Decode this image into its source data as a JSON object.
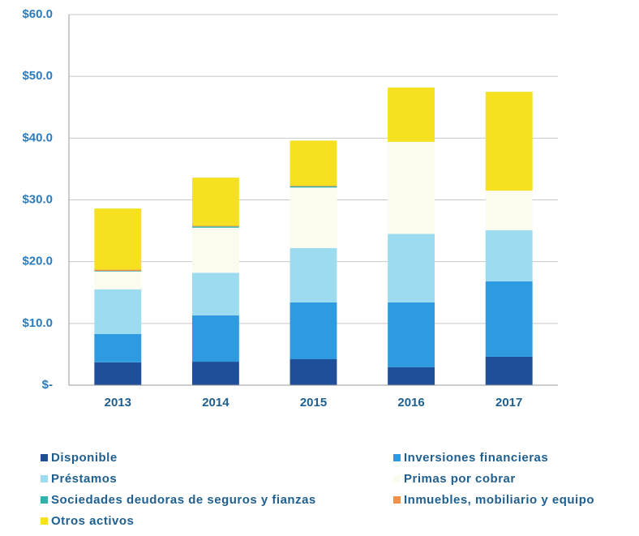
{
  "chart_data": {
    "type": "stacked_bar",
    "categories": [
      "2013",
      "2014",
      "2015",
      "2016",
      "2017"
    ],
    "series": [
      {
        "name": "Disponible",
        "color": "#1f4e9a",
        "values": [
          3.7,
          3.8,
          4.2,
          2.9,
          4.6
        ]
      },
      {
        "name": "Inversiones financieras",
        "color": "#2e9be0",
        "values": [
          4.6,
          7.5,
          9.2,
          10.5,
          12.2
        ]
      },
      {
        "name": "Préstamos",
        "color": "#9ddcf0",
        "values": [
          7.2,
          6.9,
          8.8,
          11.1,
          8.3
        ]
      },
      {
        "name": "Primas por cobrar",
        "color": "#fbfbee",
        "values": [
          2.9,
          7.3,
          9.8,
          14.9,
          6.4
        ]
      },
      {
        "name": "Sociedades deudoras de seguros y fianzas",
        "color": "#2ab5a8",
        "values": [
          0.1,
          0.2,
          0.2,
          0,
          0
        ]
      },
      {
        "name": "Inmuebles, mobiliario y equipo",
        "color": "#f0904a",
        "values": [
          0.2,
          0.1,
          0.1,
          0,
          0
        ]
      },
      {
        "name": "Otros activos",
        "color": "#f5e120",
        "values": [
          9.9,
          7.8,
          7.3,
          8.8,
          16.0
        ]
      }
    ],
    "ylim": [
      0,
      60
    ],
    "yticks": [
      {
        "value": 0,
        "label": "$-"
      },
      {
        "value": 10,
        "label": "$10.0"
      },
      {
        "value": 20,
        "label": "$20.0"
      },
      {
        "value": 30,
        "label": "$30.0"
      },
      {
        "value": 40,
        "label": "$40.0"
      },
      {
        "value": 50,
        "label": "$50.0"
      },
      {
        "value": 60,
        "label": "$60.0"
      }
    ],
    "grid": true
  }
}
